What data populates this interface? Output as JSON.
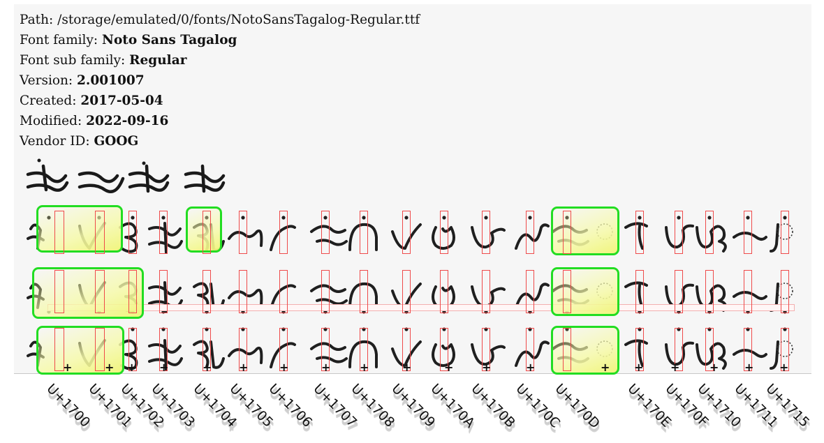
{
  "font_info": {
    "path_label": "Path:",
    "path_value": "/storage/emulated/0/fonts/NotoSansTagalog-Regular.ttf",
    "family_label": "Font family:",
    "family_value": "Noto Sans Tagalog",
    "subfamily_label": "Font sub family:",
    "subfamily_value": "Regular",
    "version_label": "Version:",
    "version_value": "2.001007",
    "created_label": "Created:",
    "created_value": "2017-05-04",
    "modified_label": "Modified:",
    "modified_value": "2022-09-16",
    "vendor_label": "Vendor ID:",
    "vendor_value": "GOOG"
  },
  "codepoints": [
    "U+1700",
    "U+1701",
    "U+1702",
    "U+1703",
    "U+1704",
    "U+1705",
    "U+1706",
    "U+1707",
    "U+1708",
    "U+1709",
    "U+170A",
    "U+170B",
    "U+170C",
    "U+170D",
    "U+170E",
    "U+170F",
    "U+1710",
    "U+1711",
    "U+1715"
  ],
  "colors": {
    "glyph_box": "#ef4a4a",
    "ligature_box": "#22dd22",
    "panel_bg": "#f6f6f6"
  }
}
